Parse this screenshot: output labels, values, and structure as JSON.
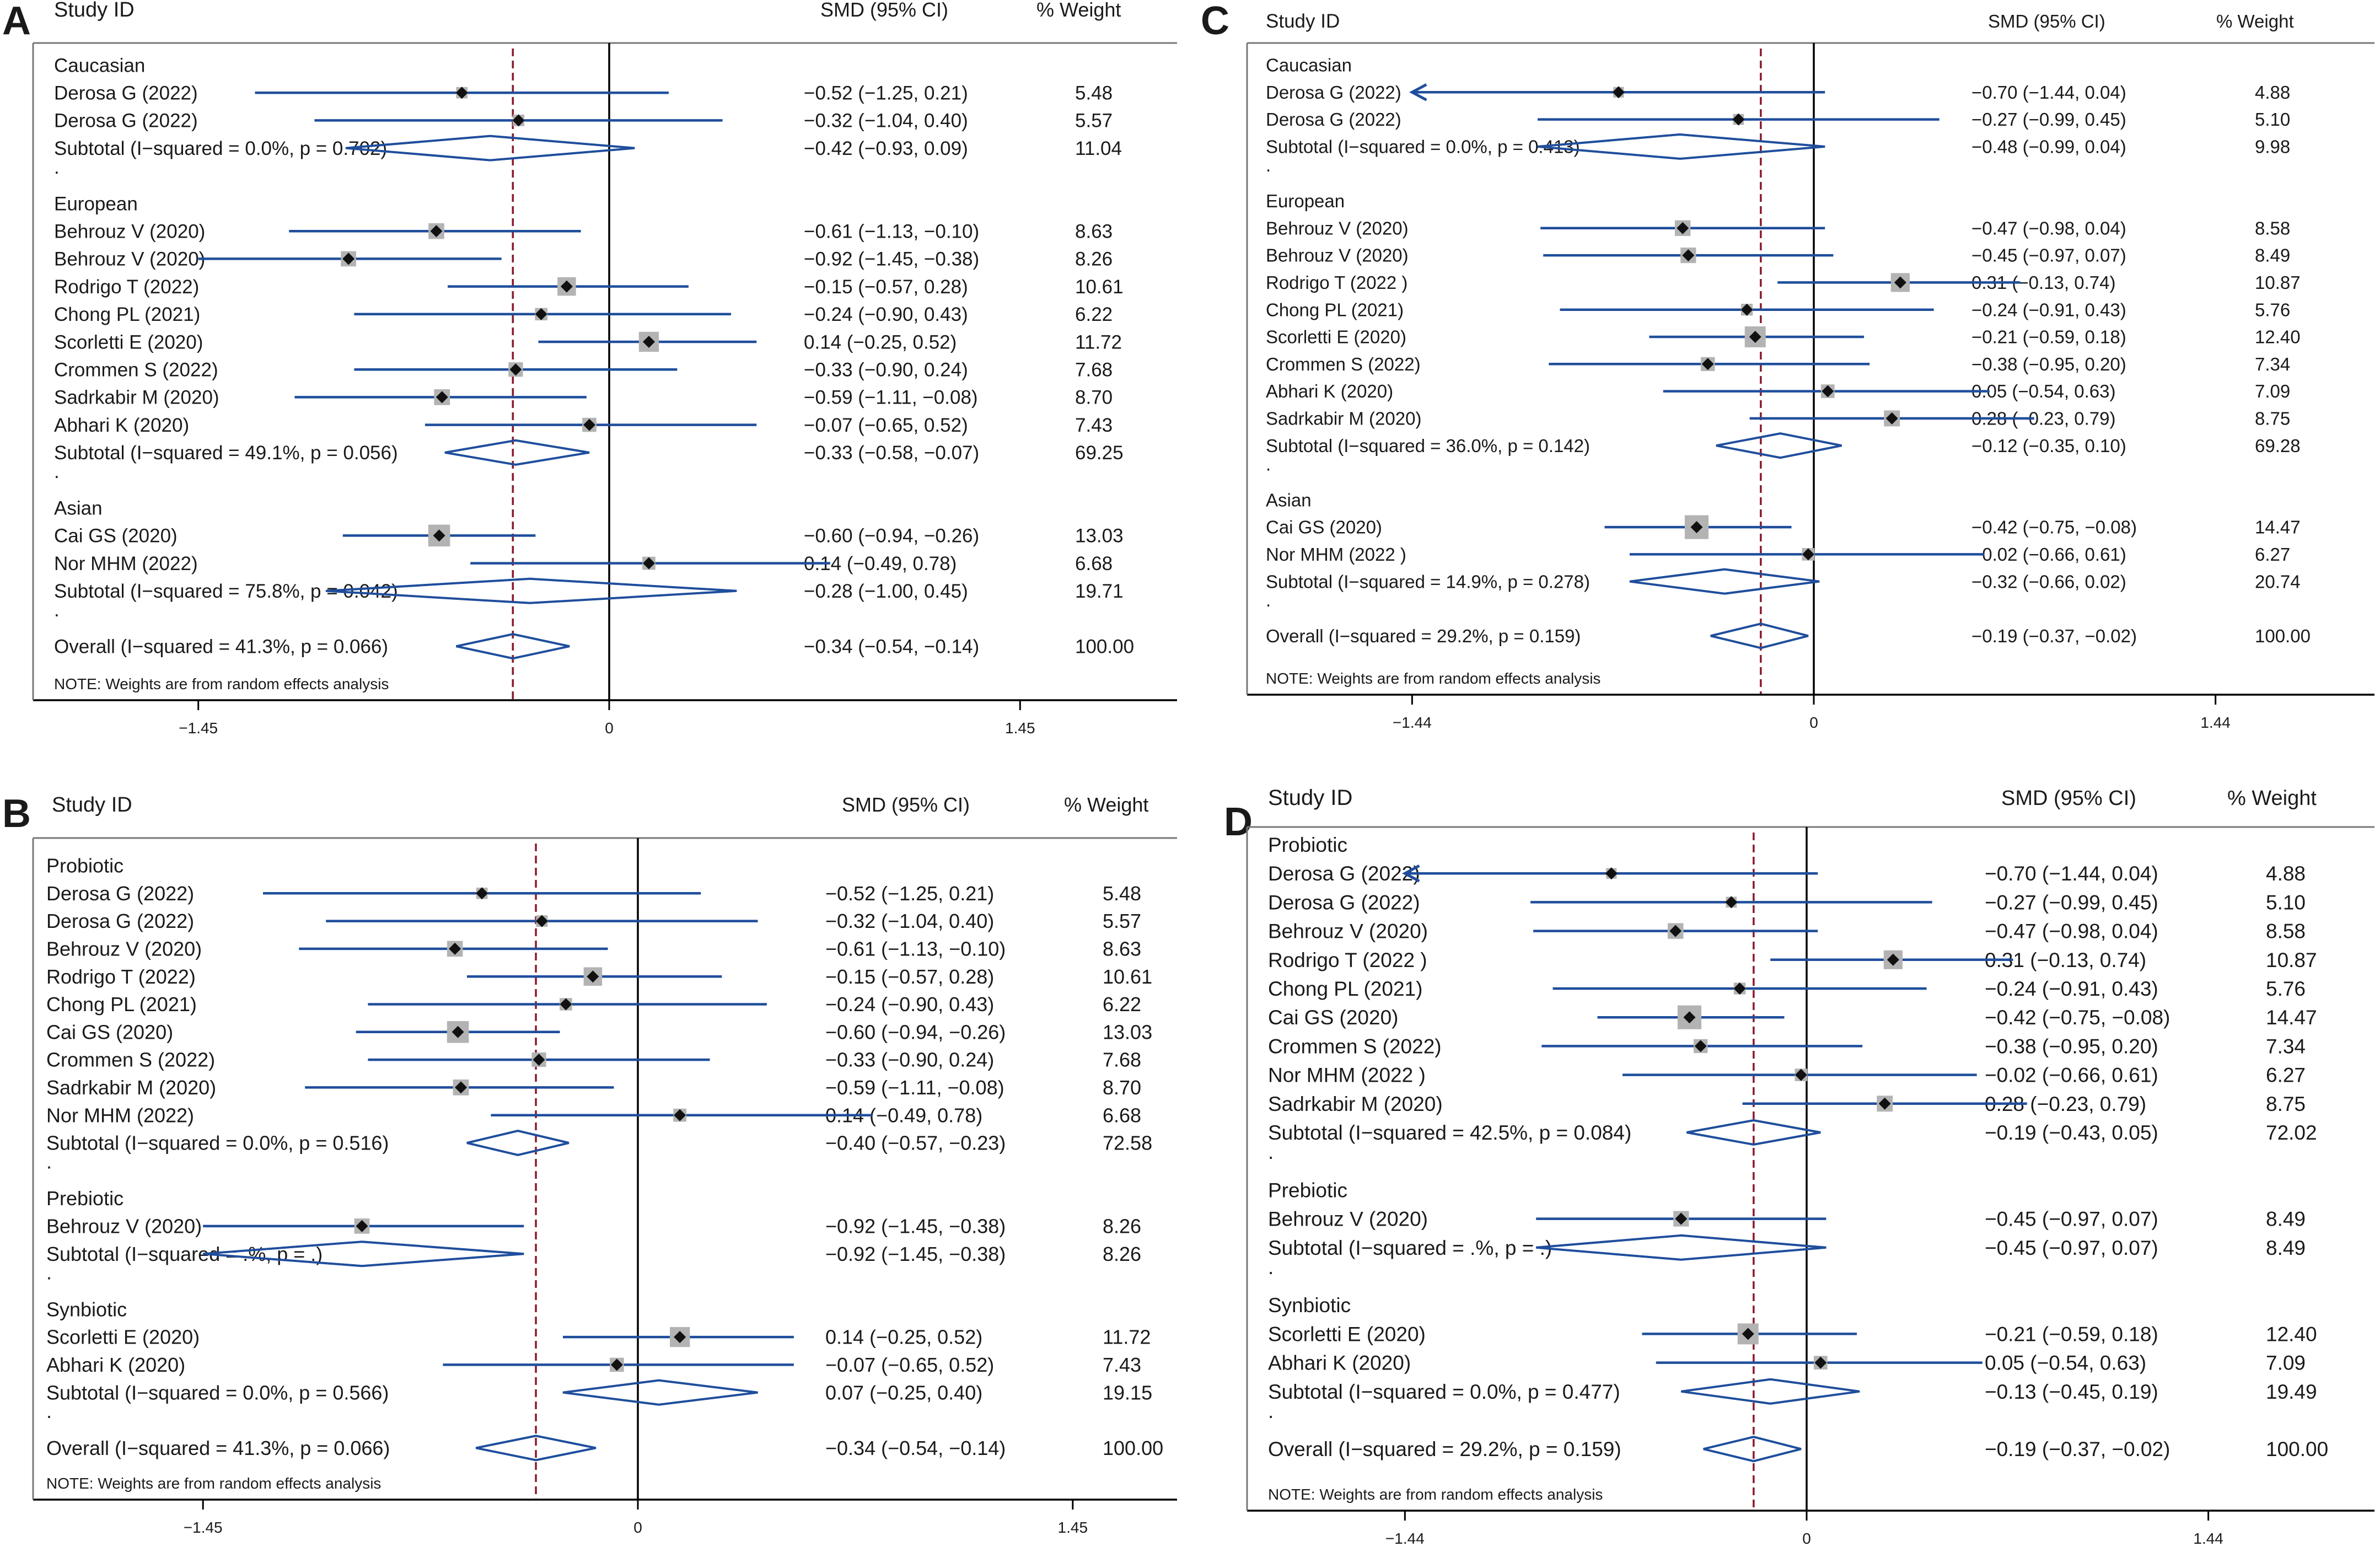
{
  "figure": {
    "note": "NOTE: Weights are from random effects analysis",
    "header": {
      "study": "Study ID",
      "smd": "SMD (95% CI)",
      "weight": "% Weight"
    },
    "colors": {
      "ci_line": "#1f4e9c",
      "diamond": "#1f4e9c",
      "reference": "#8b1a2b",
      "weight_box": "#b3b3b3",
      "text": "#1a1a1a"
    }
  },
  "chart_data": [
    {
      "type": "forest",
      "panel": "A",
      "overall_estimate": -0.34,
      "x_ticks": [
        -1.45,
        0,
        1.45
      ],
      "x_tick_labels": [
        "−1.45",
        "0",
        "1.45"
      ],
      "groups": [
        {
          "name": "Caucasian",
          "studies": [
            {
              "label": "Derosa G (2022)",
              "est": -0.52,
              "lo": -1.25,
              "hi": 0.21,
              "weight": 5.48,
              "ci_text": "−0.52 (−1.25, 0.21)",
              "weight_text": "5.48"
            },
            {
              "label": "Derosa G (2022)",
              "est": -0.32,
              "lo": -1.04,
              "hi": 0.4,
              "weight": 5.57,
              "ci_text": "−0.32 (−1.04, 0.40)",
              "weight_text": "5.57"
            }
          ],
          "subtotal": {
            "label": "Subtotal  (I−squared = 0.0%, p = 0.702)",
            "est": -0.42,
            "lo": -0.93,
            "hi": 0.09,
            "ci_text": "−0.42 (−0.93, 0.09)",
            "weight_text": "11.04"
          }
        },
        {
          "name": "European",
          "studies": [
            {
              "label": "Behrouz V (2020)",
              "est": -0.61,
              "lo": -1.13,
              "hi": -0.1,
              "weight": 8.63,
              "ci_text": "−0.61 (−1.13, −0.10)",
              "weight_text": "8.63"
            },
            {
              "label": "Behrouz V (2020)",
              "est": -0.92,
              "lo": -1.45,
              "hi": -0.38,
              "weight": 8.26,
              "ci_text": "−0.92 (−1.45, −0.38)",
              "weight_text": "8.26"
            },
            {
              "label": "Rodrigo T (2022)",
              "est": -0.15,
              "lo": -0.57,
              "hi": 0.28,
              "weight": 10.61,
              "ci_text": "−0.15 (−0.57, 0.28)",
              "weight_text": "10.61"
            },
            {
              "label": "Chong PL (2021)",
              "est": -0.24,
              "lo": -0.9,
              "hi": 0.43,
              "weight": 6.22,
              "ci_text": "−0.24 (−0.90, 0.43)",
              "weight_text": "6.22"
            },
            {
              "label": "Scorletti E (2020)",
              "est": 0.14,
              "lo": -0.25,
              "hi": 0.52,
              "weight": 11.72,
              "ci_text": "0.14 (−0.25, 0.52)",
              "weight_text": "11.72"
            },
            {
              "label": "Crommen S (2022)",
              "est": -0.33,
              "lo": -0.9,
              "hi": 0.24,
              "weight": 7.68,
              "ci_text": "−0.33 (−0.90, 0.24)",
              "weight_text": "7.68"
            },
            {
              "label": "Sadrkabir M (2020)",
              "est": -0.59,
              "lo": -1.11,
              "hi": -0.08,
              "weight": 8.7,
              "ci_text": "−0.59 (−1.11, −0.08)",
              "weight_text": "8.70"
            },
            {
              "label": "Abhari K (2020)",
              "est": -0.07,
              "lo": -0.65,
              "hi": 0.52,
              "weight": 7.43,
              "ci_text": "−0.07 (−0.65, 0.52)",
              "weight_text": "7.43"
            }
          ],
          "subtotal": {
            "label": "Subtotal  (I−squared = 49.1%, p = 0.056)",
            "est": -0.33,
            "lo": -0.58,
            "hi": -0.07,
            "ci_text": "−0.33 (−0.58, −0.07)",
            "weight_text": "69.25"
          }
        },
        {
          "name": "Asian",
          "studies": [
            {
              "label": "Cai GS (2020)",
              "est": -0.6,
              "lo": -0.94,
              "hi": -0.26,
              "weight": 13.03,
              "ci_text": "−0.60 (−0.94, −0.26)",
              "weight_text": "13.03"
            },
            {
              "label": "Nor MHM (2022)",
              "est": 0.14,
              "lo": -0.49,
              "hi": 0.78,
              "weight": 6.68,
              "ci_text": "0.14 (−0.49, 0.78)",
              "weight_text": "6.68"
            }
          ],
          "subtotal": {
            "label": "Subtotal  (I−squared = 75.8%, p = 0.042)",
            "est": -0.28,
            "lo": -1.0,
            "hi": 0.45,
            "ci_text": "−0.28 (−1.00, 0.45)",
            "weight_text": "19.71"
          }
        }
      ],
      "overall": {
        "label": "Overall  (I−squared = 41.3%, p = 0.066)",
        "est": -0.34,
        "lo": -0.54,
        "hi": -0.14,
        "ci_text": "−0.34 (−0.54, −0.14)",
        "weight_text": "100.00"
      }
    },
    {
      "type": "forest",
      "panel": "B",
      "overall_estimate": -0.34,
      "x_ticks": [
        -1.45,
        0,
        1.45
      ],
      "x_tick_labels": [
        "−1.45",
        "0",
        "1.45"
      ],
      "groups": [
        {
          "name": "Probiotic",
          "studies": [
            {
              "label": "Derosa G (2022)",
              "est": -0.52,
              "lo": -1.25,
              "hi": 0.21,
              "weight": 5.48,
              "ci_text": "−0.52 (−1.25, 0.21)",
              "weight_text": "5.48"
            },
            {
              "label": "Derosa G (2022)",
              "est": -0.32,
              "lo": -1.04,
              "hi": 0.4,
              "weight": 5.57,
              "ci_text": "−0.32 (−1.04, 0.40)",
              "weight_text": "5.57"
            },
            {
              "label": "Behrouz V (2020)",
              "est": -0.61,
              "lo": -1.13,
              "hi": -0.1,
              "weight": 8.63,
              "ci_text": "−0.61 (−1.13, −0.10)",
              "weight_text": "8.63"
            },
            {
              "label": "Rodrigo T (2022)",
              "est": -0.15,
              "lo": -0.57,
              "hi": 0.28,
              "weight": 10.61,
              "ci_text": "−0.15 (−0.57, 0.28)",
              "weight_text": "10.61"
            },
            {
              "label": "Chong PL (2021)",
              "est": -0.24,
              "lo": -0.9,
              "hi": 0.43,
              "weight": 6.22,
              "ci_text": "−0.24 (−0.90, 0.43)",
              "weight_text": "6.22"
            },
            {
              "label": "Cai GS (2020)",
              "est": -0.6,
              "lo": -0.94,
              "hi": -0.26,
              "weight": 13.03,
              "ci_text": "−0.60 (−0.94, −0.26)",
              "weight_text": "13.03"
            },
            {
              "label": "Crommen S (2022)",
              "est": -0.33,
              "lo": -0.9,
              "hi": 0.24,
              "weight": 7.68,
              "ci_text": "−0.33 (−0.90, 0.24)",
              "weight_text": "7.68"
            },
            {
              "label": "Sadrkabir M (2020)",
              "est": -0.59,
              "lo": -1.11,
              "hi": -0.08,
              "weight": 8.7,
              "ci_text": "−0.59 (−1.11, −0.08)",
              "weight_text": "8.70"
            },
            {
              "label": "Nor MHM (2022)",
              "est": 0.14,
              "lo": -0.49,
              "hi": 0.78,
              "weight": 6.68,
              "ci_text": "0.14 (−0.49, 0.78)",
              "weight_text": "6.68"
            }
          ],
          "subtotal": {
            "label": "Subtotal  (I−squared = 0.0%, p = 0.516)",
            "est": -0.4,
            "lo": -0.57,
            "hi": -0.23,
            "ci_text": "−0.40 (−0.57, −0.23)",
            "weight_text": "72.58"
          }
        },
        {
          "name": "Prebiotic",
          "studies": [
            {
              "label": "Behrouz V (2020)",
              "est": -0.92,
              "lo": -1.45,
              "hi": -0.38,
              "weight": 8.26,
              "ci_text": "−0.92 (−1.45, −0.38)",
              "weight_text": "8.26"
            }
          ],
          "subtotal": {
            "label": "Subtotal  (I−squared = .%, p = .)",
            "est": -0.92,
            "lo": -1.45,
            "hi": -0.38,
            "ci_text": "−0.92 (−1.45, −0.38)",
            "weight_text": "8.26"
          }
        },
        {
          "name": "Synbiotic",
          "studies": [
            {
              "label": "Scorletti E (2020)",
              "est": 0.14,
              "lo": -0.25,
              "hi": 0.52,
              "weight": 11.72,
              "ci_text": "0.14 (−0.25, 0.52)",
              "weight_text": "11.72"
            },
            {
              "label": "Abhari K (2020)",
              "est": -0.07,
              "lo": -0.65,
              "hi": 0.52,
              "weight": 7.43,
              "ci_text": "−0.07 (−0.65, 0.52)",
              "weight_text": "7.43"
            }
          ],
          "subtotal": {
            "label": "Subtotal  (I−squared = 0.0%, p = 0.566)",
            "est": 0.07,
            "lo": -0.25,
            "hi": 0.4,
            "ci_text": "0.07 (−0.25, 0.40)",
            "weight_text": "19.15"
          }
        }
      ],
      "overall": {
        "label": "Overall  (I−squared = 41.3%, p = 0.066)",
        "est": -0.34,
        "lo": -0.54,
        "hi": -0.14,
        "ci_text": "−0.34 (−0.54, −0.14)",
        "weight_text": "100.00"
      }
    },
    {
      "type": "forest",
      "panel": "C",
      "overall_estimate": -0.19,
      "x_ticks": [
        -1.44,
        0,
        1.44
      ],
      "x_tick_labels": [
        "−1.44",
        "0",
        "1.44"
      ],
      "groups": [
        {
          "name": "Caucasian",
          "studies": [
            {
              "label": "Derosa G (2022)",
              "est": -0.7,
              "lo": -1.44,
              "hi": 0.04,
              "weight": 4.88,
              "ci_text": "−0.70 (−1.44, 0.04)",
              "weight_text": "4.88",
              "arrow_left": true
            },
            {
              "label": "Derosa G (2022)",
              "est": -0.27,
              "lo": -0.99,
              "hi": 0.45,
              "weight": 5.1,
              "ci_text": "−0.27 (−0.99, 0.45)",
              "weight_text": "5.10"
            }
          ],
          "subtotal": {
            "label": "Subtotal  (I−squared = 0.0%, p = 0.413)",
            "est": -0.48,
            "lo": -0.99,
            "hi": 0.04,
            "ci_text": "−0.48 (−0.99, 0.04)",
            "weight_text": "9.98"
          }
        },
        {
          "name": "European",
          "studies": [
            {
              "label": "Behrouz V (2020)",
              "est": -0.47,
              "lo": -0.98,
              "hi": 0.04,
              "weight": 8.58,
              "ci_text": "−0.47 (−0.98, 0.04)",
              "weight_text": "8.58"
            },
            {
              "label": "Behrouz V (2020)",
              "est": -0.45,
              "lo": -0.97,
              "hi": 0.07,
              "weight": 8.49,
              "ci_text": "−0.45 (−0.97, 0.07)",
              "weight_text": "8.49"
            },
            {
              "label": "Rodrigo T (2022 )",
              "est": 0.31,
              "lo": -0.13,
              "hi": 0.74,
              "weight": 10.87,
              "ci_text": "0.31 (−0.13, 0.74)",
              "weight_text": "10.87"
            },
            {
              "label": "Chong PL (2021)",
              "est": -0.24,
              "lo": -0.91,
              "hi": 0.43,
              "weight": 5.76,
              "ci_text": "−0.24 (−0.91, 0.43)",
              "weight_text": "5.76"
            },
            {
              "label": "Scorletti E (2020)",
              "est": -0.21,
              "lo": -0.59,
              "hi": 0.18,
              "weight": 12.4,
              "ci_text": "−0.21 (−0.59, 0.18)",
              "weight_text": "12.40"
            },
            {
              "label": "Crommen S (2022)",
              "est": -0.38,
              "lo": -0.95,
              "hi": 0.2,
              "weight": 7.34,
              "ci_text": "−0.38 (−0.95, 0.20)",
              "weight_text": "7.34"
            },
            {
              "label": "Abhari K (2020)",
              "est": 0.05,
              "lo": -0.54,
              "hi": 0.63,
              "weight": 7.09,
              "ci_text": "0.05 (−0.54, 0.63)",
              "weight_text": "7.09"
            },
            {
              "label": "Sadrkabir M (2020)",
              "est": 0.28,
              "lo": -0.23,
              "hi": 0.79,
              "weight": 8.75,
              "ci_text": "0.28 (−0.23, 0.79)",
              "weight_text": "8.75"
            }
          ],
          "subtotal": {
            "label": "Subtotal  (I−squared = 36.0%, p = 0.142)",
            "est": -0.12,
            "lo": -0.35,
            "hi": 0.1,
            "ci_text": "−0.12 (−0.35, 0.10)",
            "weight_text": "69.28"
          }
        },
        {
          "name": "Asian",
          "studies": [
            {
              "label": "Cai GS (2020)",
              "est": -0.42,
              "lo": -0.75,
              "hi": -0.08,
              "weight": 14.47,
              "ci_text": "−0.42 (−0.75, −0.08)",
              "weight_text": "14.47"
            },
            {
              "label": "Nor MHM (2022 )",
              "est": -0.02,
              "lo": -0.66,
              "hi": 0.61,
              "weight": 6.27,
              "ci_text": "−0.02 (−0.66, 0.61)",
              "weight_text": "6.27"
            }
          ],
          "subtotal": {
            "label": "Subtotal  (I−squared = 14.9%, p = 0.278)",
            "est": -0.32,
            "lo": -0.66,
            "hi": 0.02,
            "ci_text": "−0.32 (−0.66, 0.02)",
            "weight_text": "20.74"
          }
        }
      ],
      "overall": {
        "label": "Overall  (I−squared = 29.2%, p = 0.159)",
        "est": -0.19,
        "lo": -0.37,
        "hi": -0.02,
        "ci_text": "−0.19 (−0.37, −0.02)",
        "weight_text": "100.00"
      }
    },
    {
      "type": "forest",
      "panel": "D",
      "overall_estimate": -0.19,
      "x_ticks": [
        -1.44,
        0,
        1.44
      ],
      "x_tick_labels": [
        "−1.44",
        "0",
        "1.44"
      ],
      "groups": [
        {
          "name": "Probiotic",
          "studies": [
            {
              "label": "Derosa G (2022)",
              "est": -0.7,
              "lo": -1.44,
              "hi": 0.04,
              "weight": 4.88,
              "ci_text": "−0.70 (−1.44, 0.04)",
              "weight_text": "4.88",
              "arrow_left": true
            },
            {
              "label": "Derosa G (2022)",
              "est": -0.27,
              "lo": -0.99,
              "hi": 0.45,
              "weight": 5.1,
              "ci_text": "−0.27 (−0.99, 0.45)",
              "weight_text": "5.10"
            },
            {
              "label": "Behrouz V (2020)",
              "est": -0.47,
              "lo": -0.98,
              "hi": 0.04,
              "weight": 8.58,
              "ci_text": "−0.47 (−0.98, 0.04)",
              "weight_text": "8.58"
            },
            {
              "label": "Rodrigo T (2022 )",
              "est": 0.31,
              "lo": -0.13,
              "hi": 0.74,
              "weight": 10.87,
              "ci_text": "0.31 (−0.13, 0.74)",
              "weight_text": "10.87"
            },
            {
              "label": "Chong PL (2021)",
              "est": -0.24,
              "lo": -0.91,
              "hi": 0.43,
              "weight": 5.76,
              "ci_text": "−0.24 (−0.91, 0.43)",
              "weight_text": "5.76"
            },
            {
              "label": "Cai GS (2020)",
              "est": -0.42,
              "lo": -0.75,
              "hi": -0.08,
              "weight": 14.47,
              "ci_text": "−0.42 (−0.75, −0.08)",
              "weight_text": "14.47"
            },
            {
              "label": "Crommen S (2022)",
              "est": -0.38,
              "lo": -0.95,
              "hi": 0.2,
              "weight": 7.34,
              "ci_text": "−0.38 (−0.95, 0.20)",
              "weight_text": "7.34"
            },
            {
              "label": "Nor MHM (2022 )",
              "est": -0.02,
              "lo": -0.66,
              "hi": 0.61,
              "weight": 6.27,
              "ci_text": "−0.02 (−0.66, 0.61)",
              "weight_text": "6.27"
            },
            {
              "label": "Sadrkabir M (2020)",
              "est": 0.28,
              "lo": -0.23,
              "hi": 0.79,
              "weight": 8.75,
              "ci_text": "0.28 (−0.23, 0.79)",
              "weight_text": "8.75"
            }
          ],
          "subtotal": {
            "label": "Subtotal  (I−squared = 42.5%, p = 0.084)",
            "est": -0.19,
            "lo": -0.43,
            "hi": 0.05,
            "ci_text": "−0.19 (−0.43, 0.05)",
            "weight_text": "72.02"
          }
        },
        {
          "name": "Prebiotic",
          "studies": [
            {
              "label": "Behrouz V (2020)",
              "est": -0.45,
              "lo": -0.97,
              "hi": 0.07,
              "weight": 8.49,
              "ci_text": "−0.45 (−0.97, 0.07)",
              "weight_text": "8.49"
            }
          ],
          "subtotal": {
            "label": "Subtotal  (I−squared = .%, p = .)",
            "est": -0.45,
            "lo": -0.97,
            "hi": 0.07,
            "ci_text": "−0.45 (−0.97, 0.07)",
            "weight_text": "8.49"
          }
        },
        {
          "name": "Synbiotic",
          "studies": [
            {
              "label": "Scorletti E (2020)",
              "est": -0.21,
              "lo": -0.59,
              "hi": 0.18,
              "weight": 12.4,
              "ci_text": "−0.21 (−0.59, 0.18)",
              "weight_text": "12.40"
            },
            {
              "label": "Abhari K (2020)",
              "est": 0.05,
              "lo": -0.54,
              "hi": 0.63,
              "weight": 7.09,
              "ci_text": "0.05 (−0.54, 0.63)",
              "weight_text": "7.09"
            }
          ],
          "subtotal": {
            "label": "Subtotal  (I−squared = 0.0%, p = 0.477)",
            "est": -0.13,
            "lo": -0.45,
            "hi": 0.19,
            "ci_text": "−0.13 (−0.45, 0.19)",
            "weight_text": "19.49"
          }
        }
      ],
      "overall": {
        "label": "Overall  (I−squared = 29.2%, p = 0.159)",
        "est": -0.19,
        "lo": -0.37,
        "hi": -0.02,
        "ci_text": "−0.19 (−0.37, −0.02)",
        "weight_text": "100.00"
      }
    }
  ]
}
